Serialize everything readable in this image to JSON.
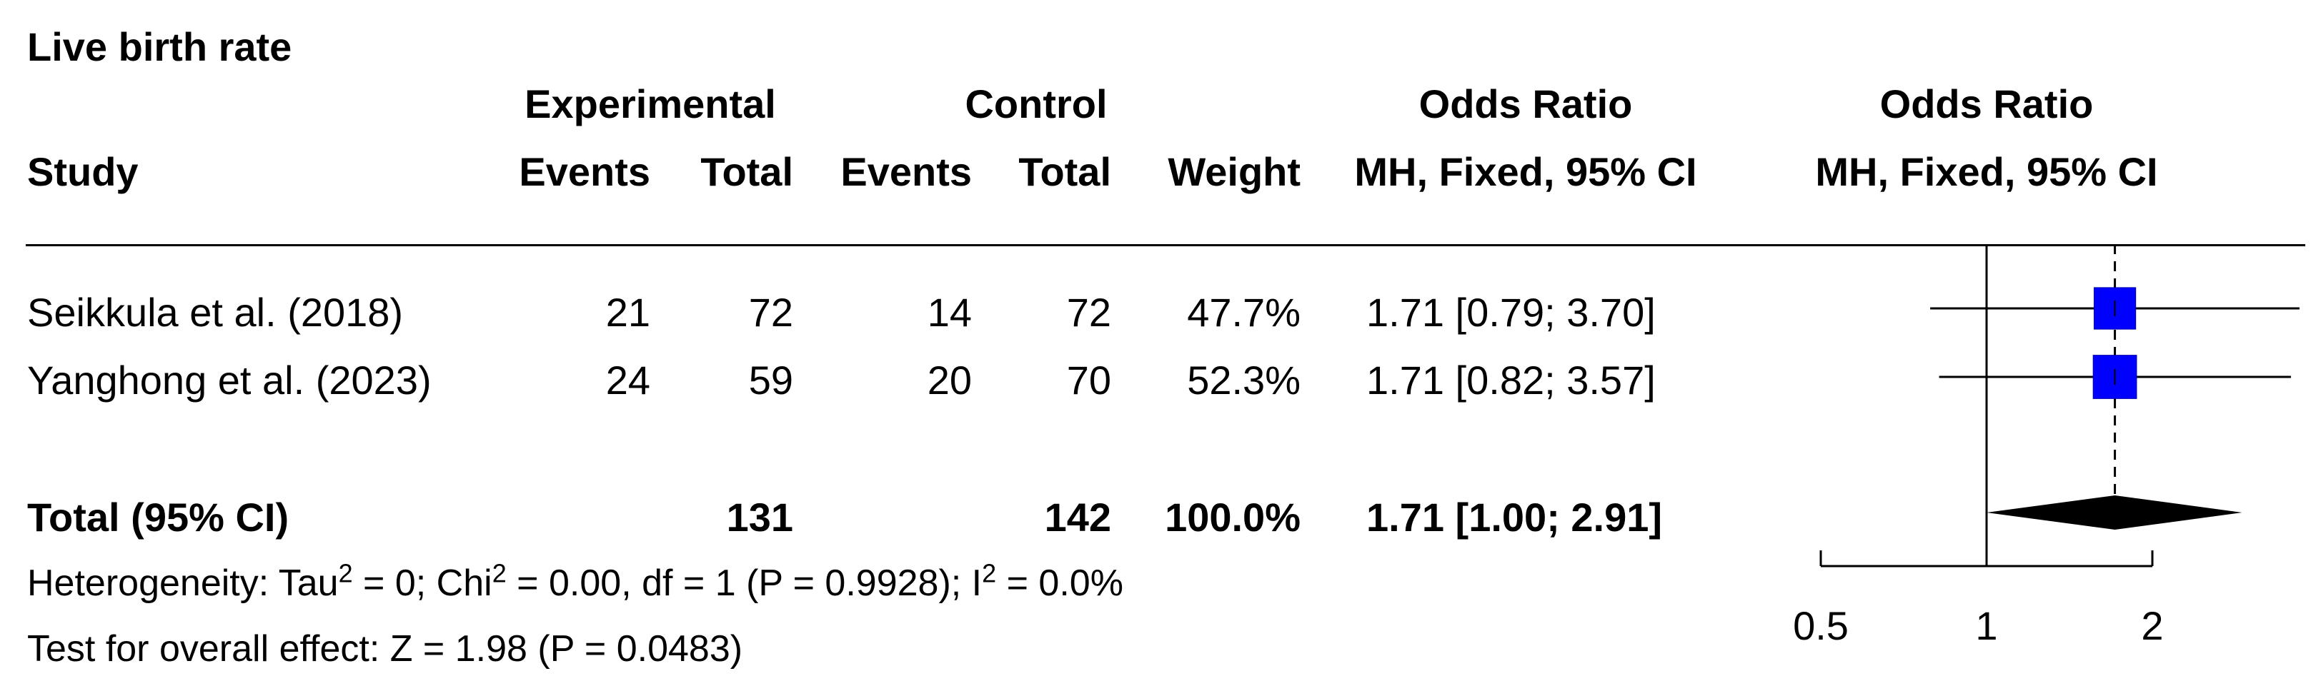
{
  "title": "Live birth rate",
  "header": {
    "study": "Study",
    "experimental": "Experimental",
    "control": "Control",
    "events": "Events",
    "total": "Total",
    "weight": "Weight",
    "or_group": "Odds Ratio",
    "or_method": "MH, Fixed, 95% CI",
    "plot_group": "Odds Ratio",
    "plot_method": "MH, Fixed, 95% CI"
  },
  "studies": [
    {
      "name": "Seikkula et al. (2018)",
      "exp_events": "21",
      "exp_total": "72",
      "ctrl_events": "14",
      "ctrl_total": "72",
      "weight": "47.7%",
      "ci": "1.71 [0.79; 3.70]"
    },
    {
      "name": "Yanghong et al. (2023)",
      "exp_events": "24",
      "exp_total": "59",
      "ctrl_events": "20",
      "ctrl_total": "70",
      "weight": "52.3%",
      "ci": "1.71 [0.82; 3.57]"
    }
  ],
  "total": {
    "label": "Total (95% CI)",
    "exp_total": "131",
    "ctrl_total": "142",
    "weight": "100.0%",
    "ci": "1.71 [1.00; 2.91]"
  },
  "heterogeneity": {
    "prefix": "Heterogeneity: Tau",
    "sup1": "2",
    "mid1": " = 0; Chi",
    "sup2": "2",
    "mid2": " = 0.00, df = 1 (P = 0.9928); I",
    "sup3": "2",
    "suffix": " = 0.0%"
  },
  "overall_effect": "Test for overall effect: Z = 1.98 (P = 0.0483)",
  "chart_data": {
    "type": "forest",
    "scale": "log",
    "x_ticks": [
      0.5,
      1,
      2
    ],
    "x_tick_labels": [
      "0.5",
      "1",
      "2"
    ],
    "xlim": [
      0.25,
      3.5
    ],
    "null_value": 1,
    "pooled_reference": 1.71,
    "studies": [
      {
        "or": 1.71,
        "lower": 0.79,
        "upper": 3.7,
        "weight": 47.7
      },
      {
        "or": 1.71,
        "lower": 0.82,
        "upper": 3.57,
        "weight": 52.3
      }
    ],
    "pooled": {
      "or": 1.71,
      "lower": 1.0,
      "upper": 2.91
    },
    "colors": {
      "box": "#0000ff",
      "diamond": "#000000",
      "lines": "#000000"
    }
  }
}
